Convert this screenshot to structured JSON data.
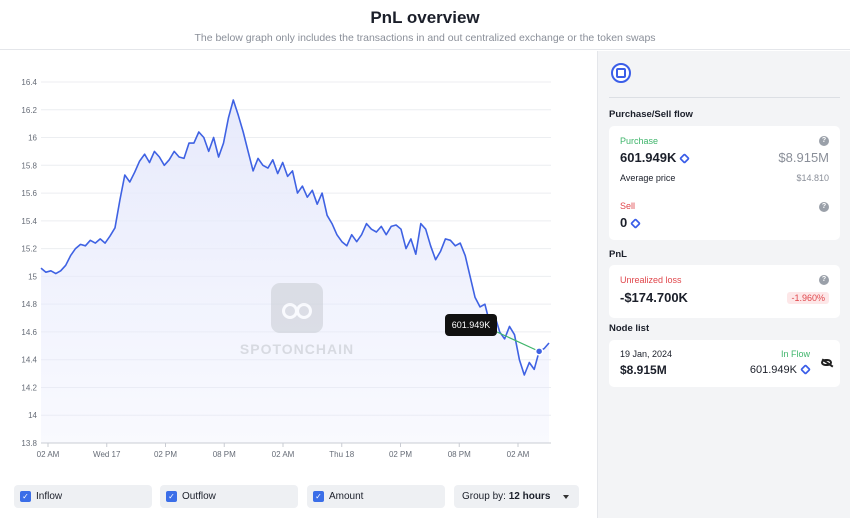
{
  "header": {
    "title": "PnL overview",
    "subtitle": "The below graph only includes the transactions in and out centralized exchange or the token swaps"
  },
  "watermark": "SPOTONCHAIN",
  "tooltip": {
    "value": "601.949K"
  },
  "chart_data": {
    "type": "area",
    "title": "PnL overview",
    "xlabel": "",
    "ylabel": "",
    "ylim": [
      13.8,
      16.4
    ],
    "y_ticks": [
      "13.8",
      "14",
      "14.2",
      "14.4",
      "14.6",
      "14.8",
      "15",
      "15.2",
      "15.4",
      "15.6",
      "15.8",
      "16",
      "16.2",
      "16.4"
    ],
    "x_ticks": [
      "02 AM",
      "Wed 17",
      "02 PM",
      "08 PM",
      "02 AM",
      "Thu 18",
      "02 PM",
      "08 PM",
      "02 AM"
    ],
    "grid": true,
    "line_color": "#3f62e3",
    "fill_color": "#e7eafc",
    "x_hours": [
      0,
      3,
      6,
      9,
      12,
      15,
      18,
      21,
      24,
      27,
      30,
      33,
      36,
      39,
      42,
      45,
      48,
      51,
      54,
      57,
      60,
      63,
      66,
      69,
      72,
      75,
      78,
      81,
      84,
      87,
      90,
      93,
      96,
      99,
      102,
      105,
      108,
      111,
      114,
      117,
      120,
      123,
      126,
      129,
      132,
      135,
      138,
      141,
      144,
      147,
      150,
      153,
      156,
      159,
      162,
      165,
      168,
      171,
      174,
      177,
      180,
      183,
      186,
      189,
      192,
      195,
      198,
      201,
      204,
      207,
      210,
      213,
      216,
      219,
      222,
      225,
      228,
      231,
      234,
      237,
      240,
      243,
      246,
      249,
      252,
      255,
      258,
      261,
      264,
      267,
      270,
      273,
      276,
      279,
      282,
      285,
      288,
      291,
      294,
      297,
      300,
      303,
      306,
      309
    ],
    "values": [
      15.06,
      15.03,
      15.04,
      15.02,
      15.04,
      15.08,
      15.15,
      15.2,
      15.23,
      15.22,
      15.26,
      15.24,
      15.27,
      15.24,
      15.29,
      15.35,
      15.55,
      15.73,
      15.68,
      15.75,
      15.83,
      15.88,
      15.82,
      15.9,
      15.86,
      15.8,
      15.84,
      15.9,
      15.86,
      15.85,
      15.96,
      15.96,
      16.04,
      16.0,
      15.9,
      16.0,
      15.86,
      15.96,
      16.14,
      16.27,
      16.16,
      16.04,
      15.9,
      15.76,
      15.85,
      15.8,
      15.78,
      15.84,
      15.74,
      15.82,
      15.72,
      15.76,
      15.6,
      15.65,
      15.57,
      15.62,
      15.52,
      15.6,
      15.44,
      15.38,
      15.3,
      15.25,
      15.22,
      15.3,
      15.25,
      15.3,
      15.38,
      15.34,
      15.32,
      15.36,
      15.3,
      15.36,
      15.37,
      15.34,
      15.2,
      15.27,
      15.16,
      15.38,
      15.34,
      15.22,
      15.12,
      15.18,
      15.27,
      15.26,
      15.22,
      15.24,
      15.15,
      15.0,
      14.85,
      14.78,
      14.8,
      14.66,
      14.72,
      14.6,
      14.55,
      14.64,
      14.58,
      14.4,
      14.29,
      14.38,
      14.33,
      14.46,
      14.48,
      14.52
    ]
  },
  "controls": {
    "inflow_label": "Inflow",
    "outflow_label": "Outflow",
    "amount_label": "Amount",
    "group_by_label": "Group by:",
    "group_by_value": "12 hours"
  },
  "side": {
    "purchase_sell_title": "Purchase/Sell flow",
    "purchase": {
      "label": "Purchase",
      "amount": "601.949K",
      "usd": "$8.915M",
      "avg_price_label": "Average price",
      "avg_price": "$14.810"
    },
    "sell": {
      "label": "Sell",
      "amount": "0"
    },
    "pnl_title": "PnL",
    "pnl": {
      "label": "Unrealized loss",
      "value": "-$174.700K",
      "pct": "-1.960%"
    },
    "node_list_title": "Node list",
    "node": {
      "date": "19 Jan, 2024",
      "status": "In Flow",
      "usd": "$8.915M",
      "amount": "601.949K"
    },
    "colors": {
      "purchase": "#3fb56b",
      "sell": "#e0474c",
      "loss": "#e0474c",
      "accent": "#3b5ee8"
    }
  }
}
